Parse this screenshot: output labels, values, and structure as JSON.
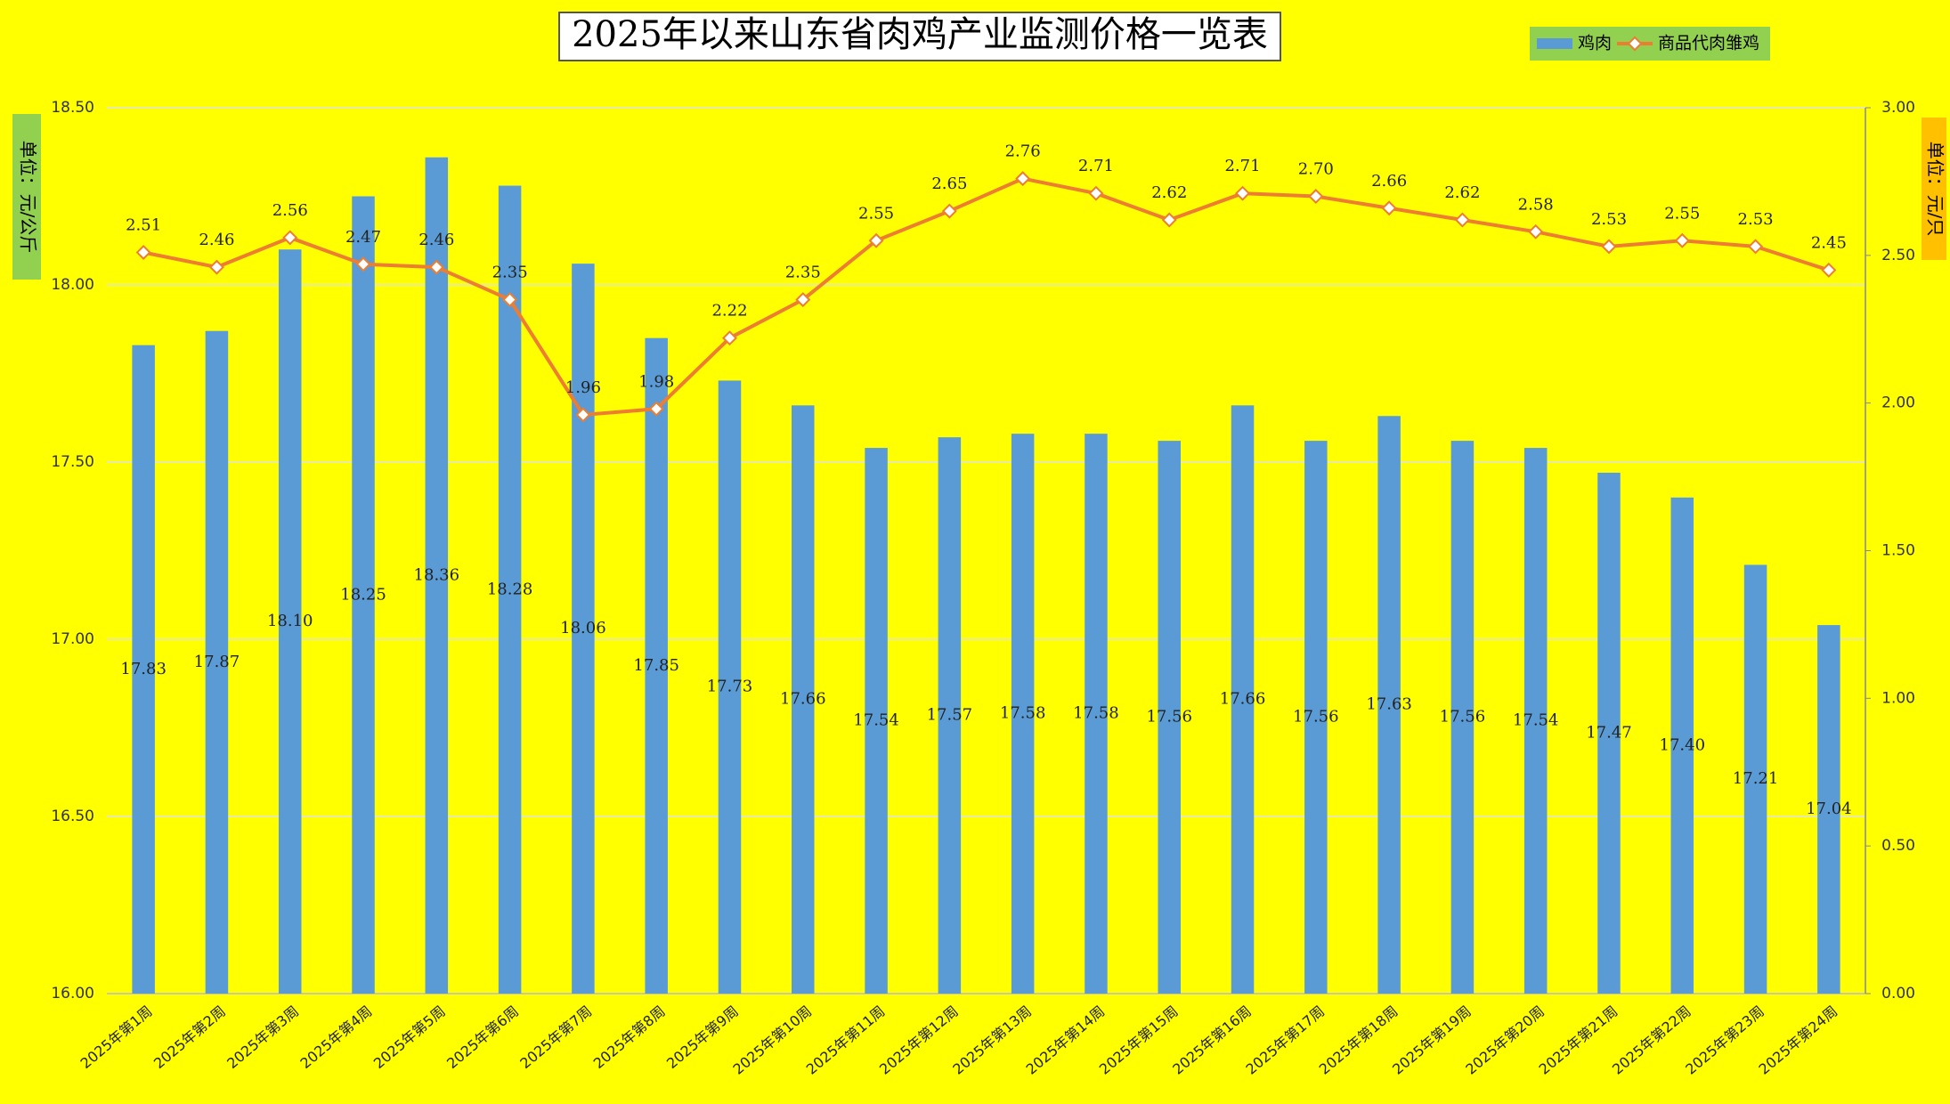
{
  "chart_data": {
    "type": "bar-line",
    "title": "2025年以来山东省肉鸡产业监测价格一览表",
    "y_label": "单位：元/公斤",
    "y2_label": "单位：元/只",
    "categories": [
      "2025年第1周",
      "2025年第2周",
      "2025年第3周",
      "2025年第4周",
      "2025年第5周",
      "2025年第6周",
      "2025年第7周",
      "2025年第8周",
      "2025年第9周",
      "2025年第10周",
      "2025年第11周",
      "2025年第12周",
      "2025年第13周",
      "2025年第14周",
      "2025年第15周",
      "2025年第16周",
      "2025年第17周",
      "2025年第18周",
      "2025年第19周",
      "2025年第20周",
      "2025年第21周",
      "2025年第22周",
      "2025年第23周",
      "2025年第24周"
    ],
    "series": [
      {
        "name": "鸡肉",
        "type": "bar",
        "color": "#5b9bd5",
        "values": [
          17.83,
          17.87,
          18.1,
          18.25,
          18.36,
          18.28,
          18.06,
          17.85,
          17.73,
          17.66,
          17.54,
          17.57,
          17.58,
          17.58,
          17.56,
          17.66,
          17.56,
          17.63,
          17.56,
          17.54,
          17.47,
          17.4,
          17.21,
          17.04
        ],
        "value_labels": [
          "17.83",
          "17.87",
          "18.10",
          "18.25",
          "18.36",
          "18.28",
          "18.06",
          "17.85",
          "17.73",
          "17.66",
          "17.54",
          "17.57",
          "17.58",
          "17.58",
          "17.56",
          "17.66",
          "17.56",
          "17.63",
          "17.56",
          "17.54",
          "17.47",
          "17.40",
          "17.21",
          "17.04"
        ]
      },
      {
        "name": "商品代肉雏鸡",
        "type": "line",
        "axis": "y2",
        "color": "#ed7d31",
        "values": [
          2.51,
          2.46,
          2.56,
          2.47,
          2.46,
          2.35,
          1.96,
          1.98,
          2.22,
          2.35,
          2.55,
          2.65,
          2.76,
          2.71,
          2.62,
          2.71,
          2.7,
          2.66,
          2.62,
          2.58,
          2.53,
          2.55,
          2.53,
          2.45
        ],
        "value_labels": [
          "2.51",
          "2.46",
          "2.56",
          "2.47",
          "2.46",
          "2.35",
          "1.96",
          "1.98",
          "2.22",
          "2.35",
          "2.55",
          "2.65",
          "2.76",
          "2.71",
          "2.62",
          "2.71",
          "2.70",
          "2.66",
          "2.62",
          "2.58",
          "2.53",
          "2.55",
          "2.53",
          "2.45"
        ]
      }
    ],
    "ylim": [
      16,
      18.5
    ],
    "yticks": [
      {
        "value": 16,
        "label": "16.00"
      },
      {
        "value": 16.5,
        "label": "16.50"
      },
      {
        "value": 17,
        "label": "17.00"
      },
      {
        "value": 17.5,
        "label": "17.50"
      },
      {
        "value": 18,
        "label": "18.00"
      },
      {
        "value": 18.5,
        "label": "18.50"
      }
    ],
    "y2lim": [
      0,
      3
    ],
    "y2ticks": [
      {
        "value": 0,
        "label": "0.00"
      },
      {
        "value": 0.5,
        "label": "0.50"
      },
      {
        "value": 1,
        "label": "1.00"
      },
      {
        "value": 1.5,
        "label": "1.50"
      },
      {
        "value": 2,
        "label": "2.00"
      },
      {
        "value": 2.5,
        "label": "2.50"
      },
      {
        "value": 3,
        "label": "3.00"
      }
    ],
    "grid": true,
    "legend": "top-right"
  }
}
